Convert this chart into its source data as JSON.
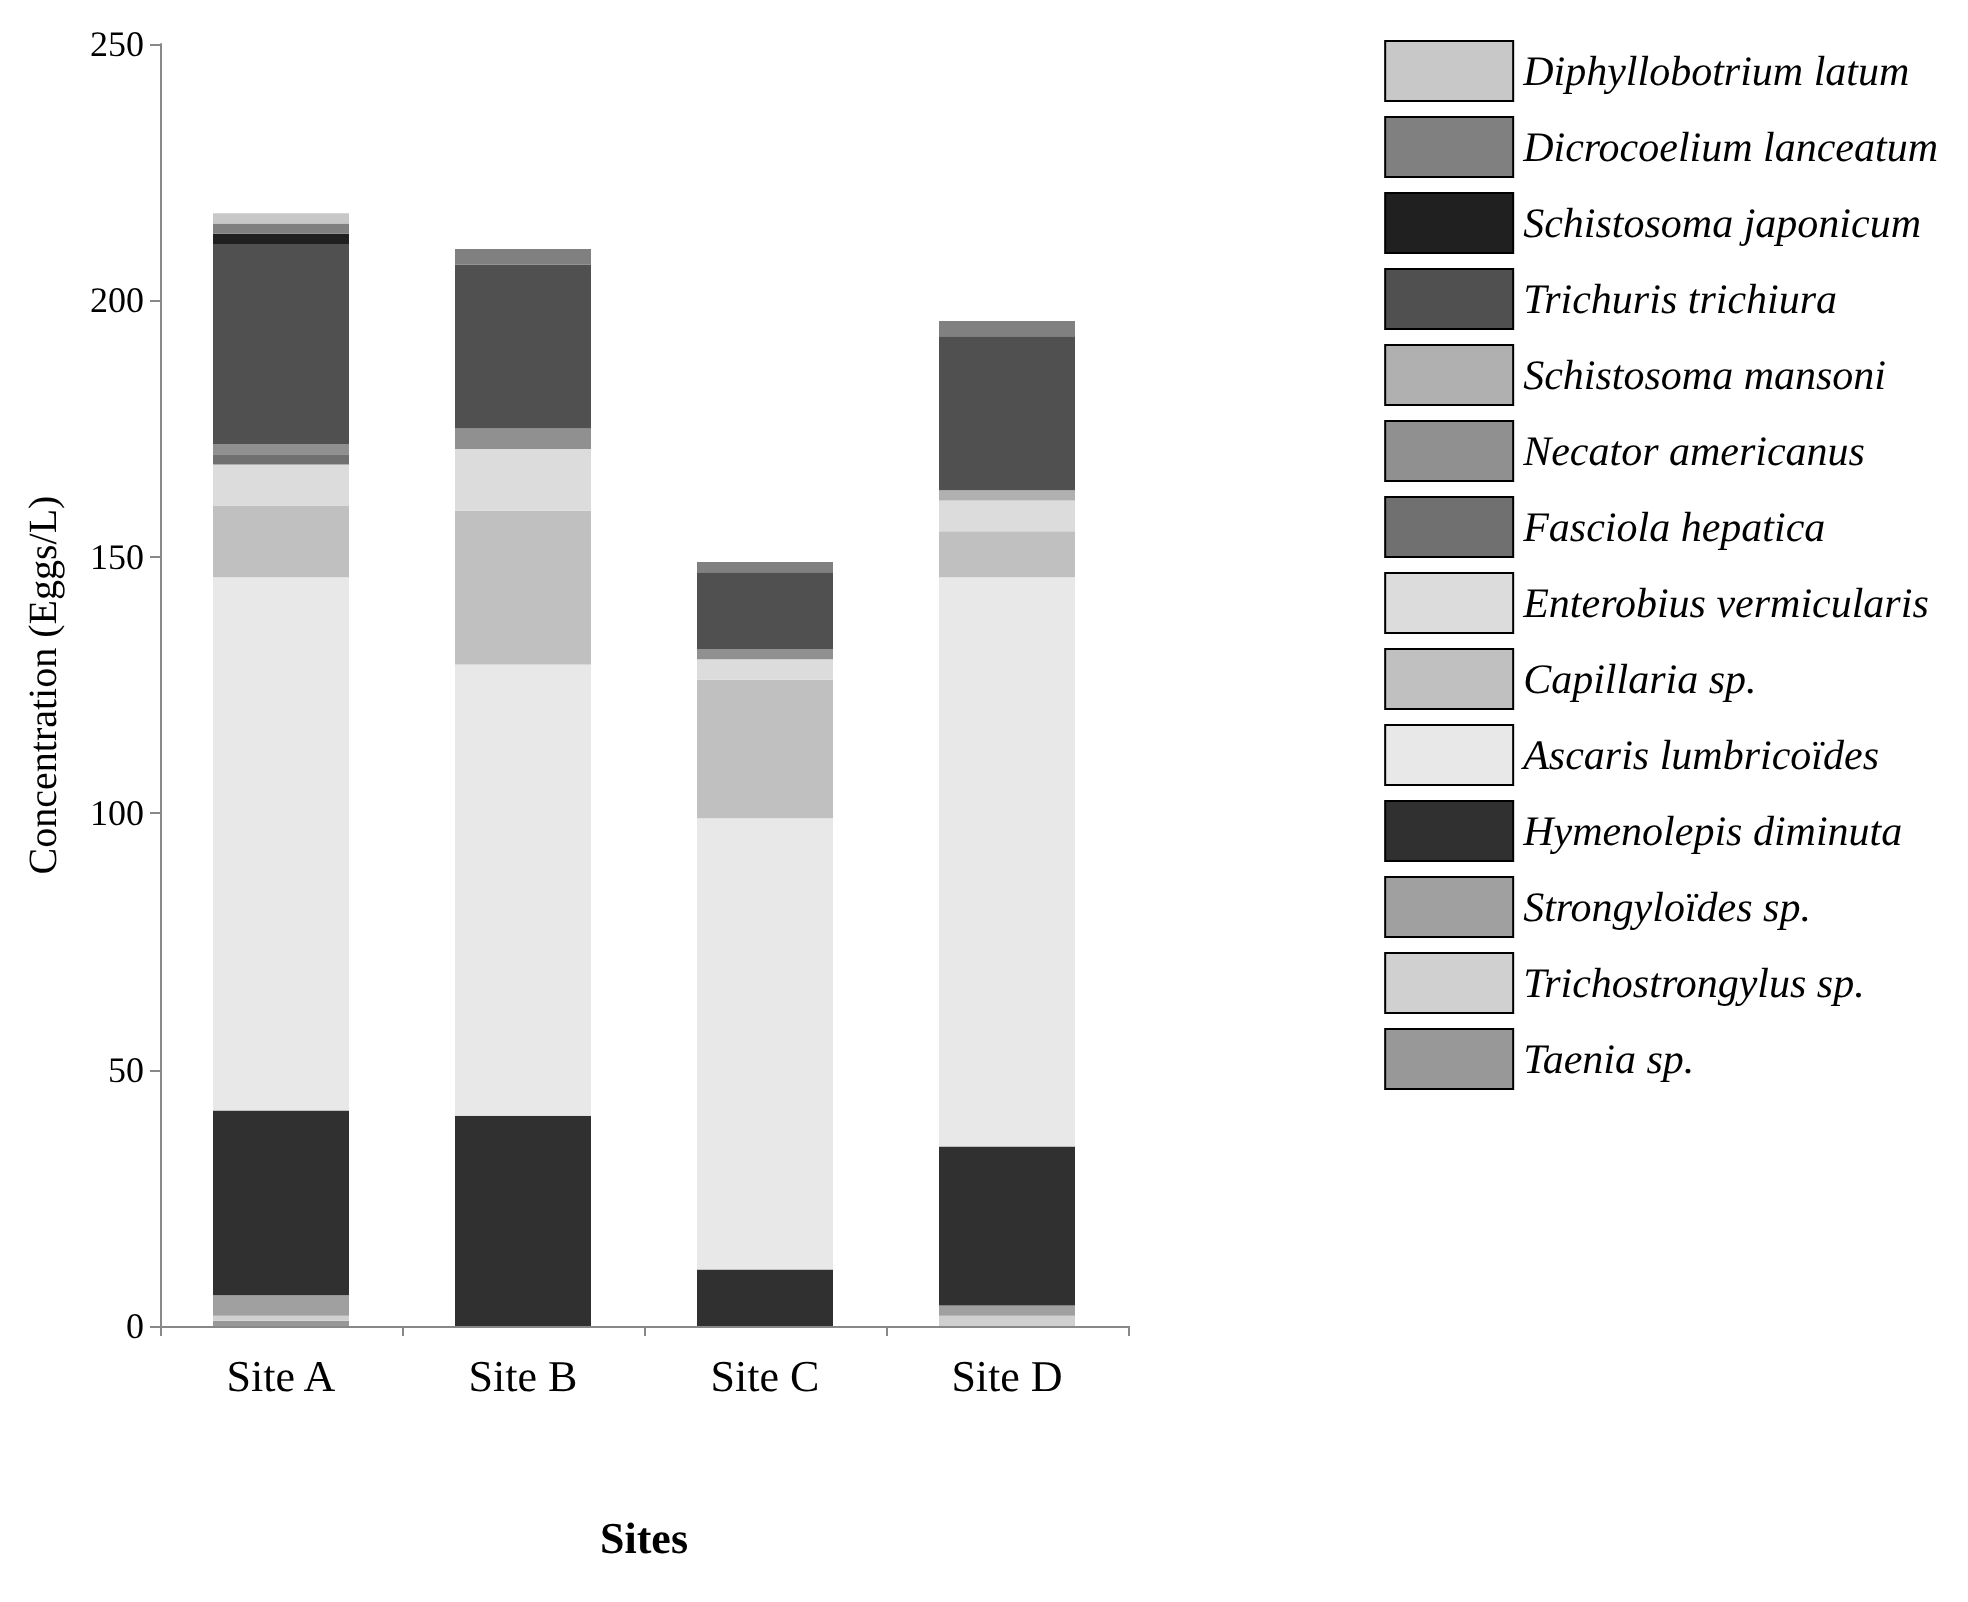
{
  "chart_data": {
    "type": "bar",
    "stacked": true,
    "xlabel": "Sites",
    "ylabel": "Concentration (Eggs/L)",
    "categories": [
      "Site A",
      "Site B",
      "Site C",
      "Site D"
    ],
    "ylim": [
      0,
      250
    ],
    "yticks": [
      0,
      50,
      100,
      150,
      200,
      250
    ],
    "grid": false,
    "legend": "right",
    "series": [
      {
        "name": "Taenia sp.",
        "color": "#989898",
        "values": [
          1,
          0,
          0,
          0
        ]
      },
      {
        "name": "Trichostrongylus sp.",
        "color": "#d0d0d0",
        "values": [
          1,
          0,
          0,
          2
        ]
      },
      {
        "name": "Strongyloïdes sp.",
        "color": "#a0a0a0",
        "values": [
          4,
          0,
          0,
          2
        ]
      },
      {
        "name": "Hymenolepis diminuta",
        "color": "#303030",
        "values": [
          36,
          41,
          11,
          31
        ]
      },
      {
        "name": "Ascaris lumbricoïdes",
        "color": "#e8e8e8",
        "values": [
          104,
          88,
          88,
          111
        ]
      },
      {
        "name": "Capillaria sp.",
        "color": "#c0c0c0",
        "values": [
          14,
          30,
          27,
          9
        ]
      },
      {
        "name": "Enterobius vermicularis",
        "color": "#dcdcdc",
        "values": [
          8,
          12,
          4,
          6
        ]
      },
      {
        "name": "Fasciola hepatica",
        "color": "#707070",
        "values": [
          2,
          0,
          0,
          0
        ]
      },
      {
        "name": "Necator americanus",
        "color": "#909090",
        "values": [
          2,
          4,
          2,
          0
        ]
      },
      {
        "name": "Schistosoma mansoni",
        "color": "#b0b0b0",
        "values": [
          0,
          0,
          0,
          2
        ]
      },
      {
        "name": "Trichuris trichiura",
        "color": "#505050",
        "values": [
          39,
          32,
          15,
          30
        ]
      },
      {
        "name": "Schistosoma japonicum",
        "color": "#202020",
        "values": [
          2,
          0,
          0,
          0
        ]
      },
      {
        "name": "Dicrocoelium lanceatum",
        "color": "#808080",
        "values": [
          2,
          3,
          2,
          3
        ]
      },
      {
        "name": "Diphyllobotrium latum",
        "color": "#c8c8c8",
        "values": [
          2,
          0,
          0,
          0
        ]
      }
    ]
  }
}
